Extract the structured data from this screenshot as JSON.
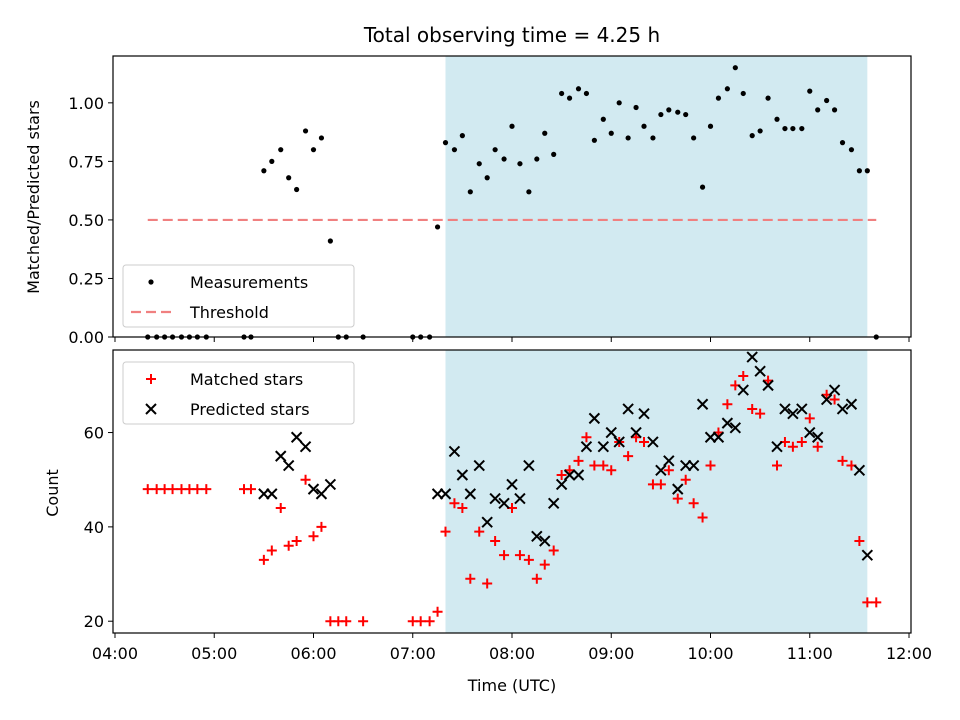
{
  "chart_data": {
    "title": "Total observing time = 4.25 h",
    "xlabel": "Time (UTC)",
    "x_ticks": [
      "04:00",
      "05:00",
      "06:00",
      "07:00",
      "08:00",
      "09:00",
      "10:00",
      "11:00",
      "12:00"
    ],
    "xlim_hours": [
      3.98,
      12.02
    ],
    "shaded_interval_hours": [
      7.33,
      11.58
    ],
    "colors": {
      "shade": "#add8e6",
      "matched": "#ff0000",
      "predicted": "#000000",
      "measurement": "#000000",
      "threshold": "#f08080"
    },
    "panels": [
      {
        "type": "scatter",
        "ylabel": "Matched/Predicted stars",
        "ylim": [
          0,
          1.2
        ],
        "y_ticks": [
          "0.00",
          "0.25",
          "0.50",
          "0.75",
          "1.00"
        ],
        "legend_position": "lower-left",
        "series": [
          {
            "name": "Measurements",
            "marker": "dot",
            "points": [
              [
                4.33,
                0
              ],
              [
                4.42,
                0
              ],
              [
                4.5,
                0
              ],
              [
                4.58,
                0
              ],
              [
                4.67,
                0
              ],
              [
                4.75,
                0
              ],
              [
                4.83,
                0
              ],
              [
                4.92,
                0
              ],
              [
                5.3,
                0
              ],
              [
                5.37,
                0
              ],
              [
                5.5,
                0.71
              ],
              [
                5.58,
                0.75
              ],
              [
                5.67,
                0.8
              ],
              [
                5.75,
                0.68
              ],
              [
                5.83,
                0.63
              ],
              [
                5.92,
                0.88
              ],
              [
                6.0,
                0.8
              ],
              [
                6.08,
                0.85
              ],
              [
                6.17,
                0.41
              ],
              [
                6.25,
                0
              ],
              [
                6.33,
                0
              ],
              [
                6.5,
                0
              ],
              [
                7.0,
                0
              ],
              [
                7.08,
                0
              ],
              [
                7.17,
                0
              ],
              [
                7.25,
                0.47
              ],
              [
                7.33,
                0.83
              ],
              [
                7.42,
                0.8
              ],
              [
                7.5,
                0.86
              ],
              [
                7.58,
                0.62
              ],
              [
                7.67,
                0.74
              ],
              [
                7.75,
                0.68
              ],
              [
                7.83,
                0.8
              ],
              [
                7.92,
                0.76
              ],
              [
                8.0,
                0.9
              ],
              [
                8.08,
                0.74
              ],
              [
                8.17,
                0.62
              ],
              [
                8.25,
                0.76
              ],
              [
                8.33,
                0.87
              ],
              [
                8.42,
                0.78
              ],
              [
                8.5,
                1.04
              ],
              [
                8.58,
                1.02
              ],
              [
                8.67,
                1.06
              ],
              [
                8.75,
                1.04
              ],
              [
                8.83,
                0.84
              ],
              [
                8.92,
                0.93
              ],
              [
                9.0,
                0.87
              ],
              [
                9.08,
                1.0
              ],
              [
                9.17,
                0.85
              ],
              [
                9.25,
                0.98
              ],
              [
                9.33,
                0.9
              ],
              [
                9.42,
                0.85
              ],
              [
                9.5,
                0.95
              ],
              [
                9.58,
                0.97
              ],
              [
                9.67,
                0.96
              ],
              [
                9.75,
                0.95
              ],
              [
                9.83,
                0.85
              ],
              [
                9.92,
                0.64
              ],
              [
                10.0,
                0.9
              ],
              [
                10.08,
                1.02
              ],
              [
                10.17,
                1.06
              ],
              [
                10.25,
                1.15
              ],
              [
                10.33,
                1.04
              ],
              [
                10.42,
                0.86
              ],
              [
                10.5,
                0.88
              ],
              [
                10.58,
                1.02
              ],
              [
                10.67,
                0.93
              ],
              [
                10.75,
                0.89
              ],
              [
                10.83,
                0.89
              ],
              [
                10.92,
                0.89
              ],
              [
                11.0,
                1.05
              ],
              [
                11.08,
                0.97
              ],
              [
                11.17,
                1.01
              ],
              [
                11.25,
                0.97
              ],
              [
                11.33,
                0.83
              ],
              [
                11.42,
                0.8
              ],
              [
                11.5,
                0.71
              ],
              [
                11.58,
                0.71
              ],
              [
                11.67,
                0
              ]
            ]
          },
          {
            "name": "Threshold",
            "type": "line",
            "style": "dashed",
            "points": [
              [
                4.33,
                0.5
              ],
              [
                11.67,
                0.5
              ]
            ]
          }
        ]
      },
      {
        "type": "scatter",
        "ylabel": "Count",
        "ylim": [
          17.5,
          77.5
        ],
        "y_ticks": [
          "20",
          "40",
          "60"
        ],
        "legend_position": "upper-left",
        "series": [
          {
            "name": "Matched stars",
            "marker": "plus",
            "points": [
              [
                4.33,
                48
              ],
              [
                4.42,
                48
              ],
              [
                4.5,
                48
              ],
              [
                4.58,
                48
              ],
              [
                4.67,
                48
              ],
              [
                4.75,
                48
              ],
              [
                4.83,
                48
              ],
              [
                4.92,
                48
              ],
              [
                5.3,
                48
              ],
              [
                5.37,
                48
              ],
              [
                5.5,
                33
              ],
              [
                5.58,
                35
              ],
              [
                5.67,
                44
              ],
              [
                5.75,
                36
              ],
              [
                5.83,
                37
              ],
              [
                5.92,
                50
              ],
              [
                6.0,
                38
              ],
              [
                6.08,
                40
              ],
              [
                6.17,
                20
              ],
              [
                6.25,
                20
              ],
              [
                6.33,
                20
              ],
              [
                6.5,
                20
              ],
              [
                7.0,
                20
              ],
              [
                7.08,
                20
              ],
              [
                7.17,
                20
              ],
              [
                7.25,
                22
              ],
              [
                7.33,
                39
              ],
              [
                7.42,
                45
              ],
              [
                7.5,
                44
              ],
              [
                7.58,
                29
              ],
              [
                7.67,
                39
              ],
              [
                7.75,
                28
              ],
              [
                7.83,
                37
              ],
              [
                7.92,
                34
              ],
              [
                8.0,
                44
              ],
              [
                8.08,
                34
              ],
              [
                8.17,
                33
              ],
              [
                8.25,
                29
              ],
              [
                8.33,
                32
              ],
              [
                8.42,
                35
              ],
              [
                8.5,
                51
              ],
              [
                8.58,
                52
              ],
              [
                8.67,
                54
              ],
              [
                8.75,
                59
              ],
              [
                8.83,
                53
              ],
              [
                8.92,
                53
              ],
              [
                9.0,
                52
              ],
              [
                9.08,
                58
              ],
              [
                9.17,
                55
              ],
              [
                9.25,
                59
              ],
              [
                9.33,
                58
              ],
              [
                9.42,
                49
              ],
              [
                9.5,
                49
              ],
              [
                9.58,
                52
              ],
              [
                9.67,
                46
              ],
              [
                9.75,
                50
              ],
              [
                9.83,
                45
              ],
              [
                9.92,
                42
              ],
              [
                10.0,
                53
              ],
              [
                10.08,
                60
              ],
              [
                10.17,
                66
              ],
              [
                10.25,
                70
              ],
              [
                10.33,
                72
              ],
              [
                10.42,
                65
              ],
              [
                10.5,
                64
              ],
              [
                10.58,
                71
              ],
              [
                10.67,
                53
              ],
              [
                10.75,
                58
              ],
              [
                10.83,
                57
              ],
              [
                10.92,
                58
              ],
              [
                11.0,
                63
              ],
              [
                11.08,
                57
              ],
              [
                11.17,
                68
              ],
              [
                11.25,
                67
              ],
              [
                11.33,
                54
              ],
              [
                11.42,
                53
              ],
              [
                11.5,
                37
              ],
              [
                11.58,
                24
              ],
              [
                11.67,
                24
              ]
            ]
          },
          {
            "name": "Predicted stars",
            "marker": "x",
            "points": [
              [
                5.5,
                47
              ],
              [
                5.58,
                47
              ],
              [
                5.67,
                55
              ],
              [
                5.75,
                53
              ],
              [
                5.83,
                59
              ],
              [
                5.92,
                57
              ],
              [
                6.0,
                48
              ],
              [
                6.08,
                47
              ],
              [
                6.17,
                49
              ],
              [
                7.25,
                47
              ],
              [
                7.33,
                47
              ],
              [
                7.42,
                56
              ],
              [
                7.5,
                51
              ],
              [
                7.58,
                47
              ],
              [
                7.67,
                53
              ],
              [
                7.75,
                41
              ],
              [
                7.83,
                46
              ],
              [
                7.92,
                45
              ],
              [
                8.0,
                49
              ],
              [
                8.08,
                46
              ],
              [
                8.17,
                53
              ],
              [
                8.25,
                38
              ],
              [
                8.33,
                37
              ],
              [
                8.42,
                45
              ],
              [
                8.5,
                49
              ],
              [
                8.58,
                51
              ],
              [
                8.67,
                51
              ],
              [
                8.75,
                57
              ],
              [
                8.83,
                63
              ],
              [
                8.92,
                57
              ],
              [
                9.0,
                60
              ],
              [
                9.08,
                58
              ],
              [
                9.17,
                65
              ],
              [
                9.25,
                60
              ],
              [
                9.33,
                64
              ],
              [
                9.42,
                58
              ],
              [
                9.5,
                52
              ],
              [
                9.58,
                54
              ],
              [
                9.67,
                48
              ],
              [
                9.75,
                53
              ],
              [
                9.83,
                53
              ],
              [
                9.92,
                66
              ],
              [
                10.0,
                59
              ],
              [
                10.08,
                59
              ],
              [
                10.17,
                62
              ],
              [
                10.25,
                61
              ],
              [
                10.33,
                69
              ],
              [
                10.42,
                76
              ],
              [
                10.5,
                73
              ],
              [
                10.58,
                70
              ],
              [
                10.67,
                57
              ],
              [
                10.75,
                65
              ],
              [
                10.83,
                64
              ],
              [
                10.92,
                65
              ],
              [
                11.0,
                60
              ],
              [
                11.08,
                59
              ],
              [
                11.17,
                67
              ],
              [
                11.25,
                69
              ],
              [
                11.33,
                65
              ],
              [
                11.42,
                66
              ],
              [
                11.5,
                52
              ],
              [
                11.58,
                34
              ]
            ]
          }
        ]
      }
    ]
  }
}
